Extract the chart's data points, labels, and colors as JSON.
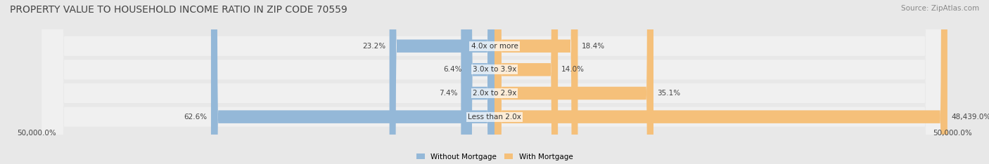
{
  "title": "PROPERTY VALUE TO HOUSEHOLD INCOME RATIO IN ZIP CODE 70559",
  "source_text": "Source: ZipAtlas.com",
  "categories": [
    "Less than 2.0x",
    "2.0x to 2.9x",
    "3.0x to 3.9x",
    "4.0x or more"
  ],
  "without_mortgage": [
    62.6,
    7.4,
    6.4,
    23.2
  ],
  "with_mortgage": [
    48439.0,
    35.1,
    14.0,
    18.4
  ],
  "without_mortgage_labels": [
    "62.6%",
    "7.4%",
    "6.4%",
    "23.2%"
  ],
  "with_mortgage_labels": [
    "48,439.0%",
    "35.1%",
    "14.0%",
    "18.4%"
  ],
  "bar_color_without": "#94b8d8",
  "bar_color_with": "#f5c07a",
  "bg_color": "#e8e8e8",
  "row_bg_color": "#f0f0f0",
  "x_min": -50000,
  "x_max": 50000,
  "x_left_label": "50,000.0%",
  "x_right_label": "50,000.0%",
  "legend_without": "Without Mortgage",
  "legend_with": "With Mortgage",
  "title_fontsize": 10,
  "source_fontsize": 7.5,
  "label_fontsize": 7.5,
  "category_fontsize": 7.5
}
